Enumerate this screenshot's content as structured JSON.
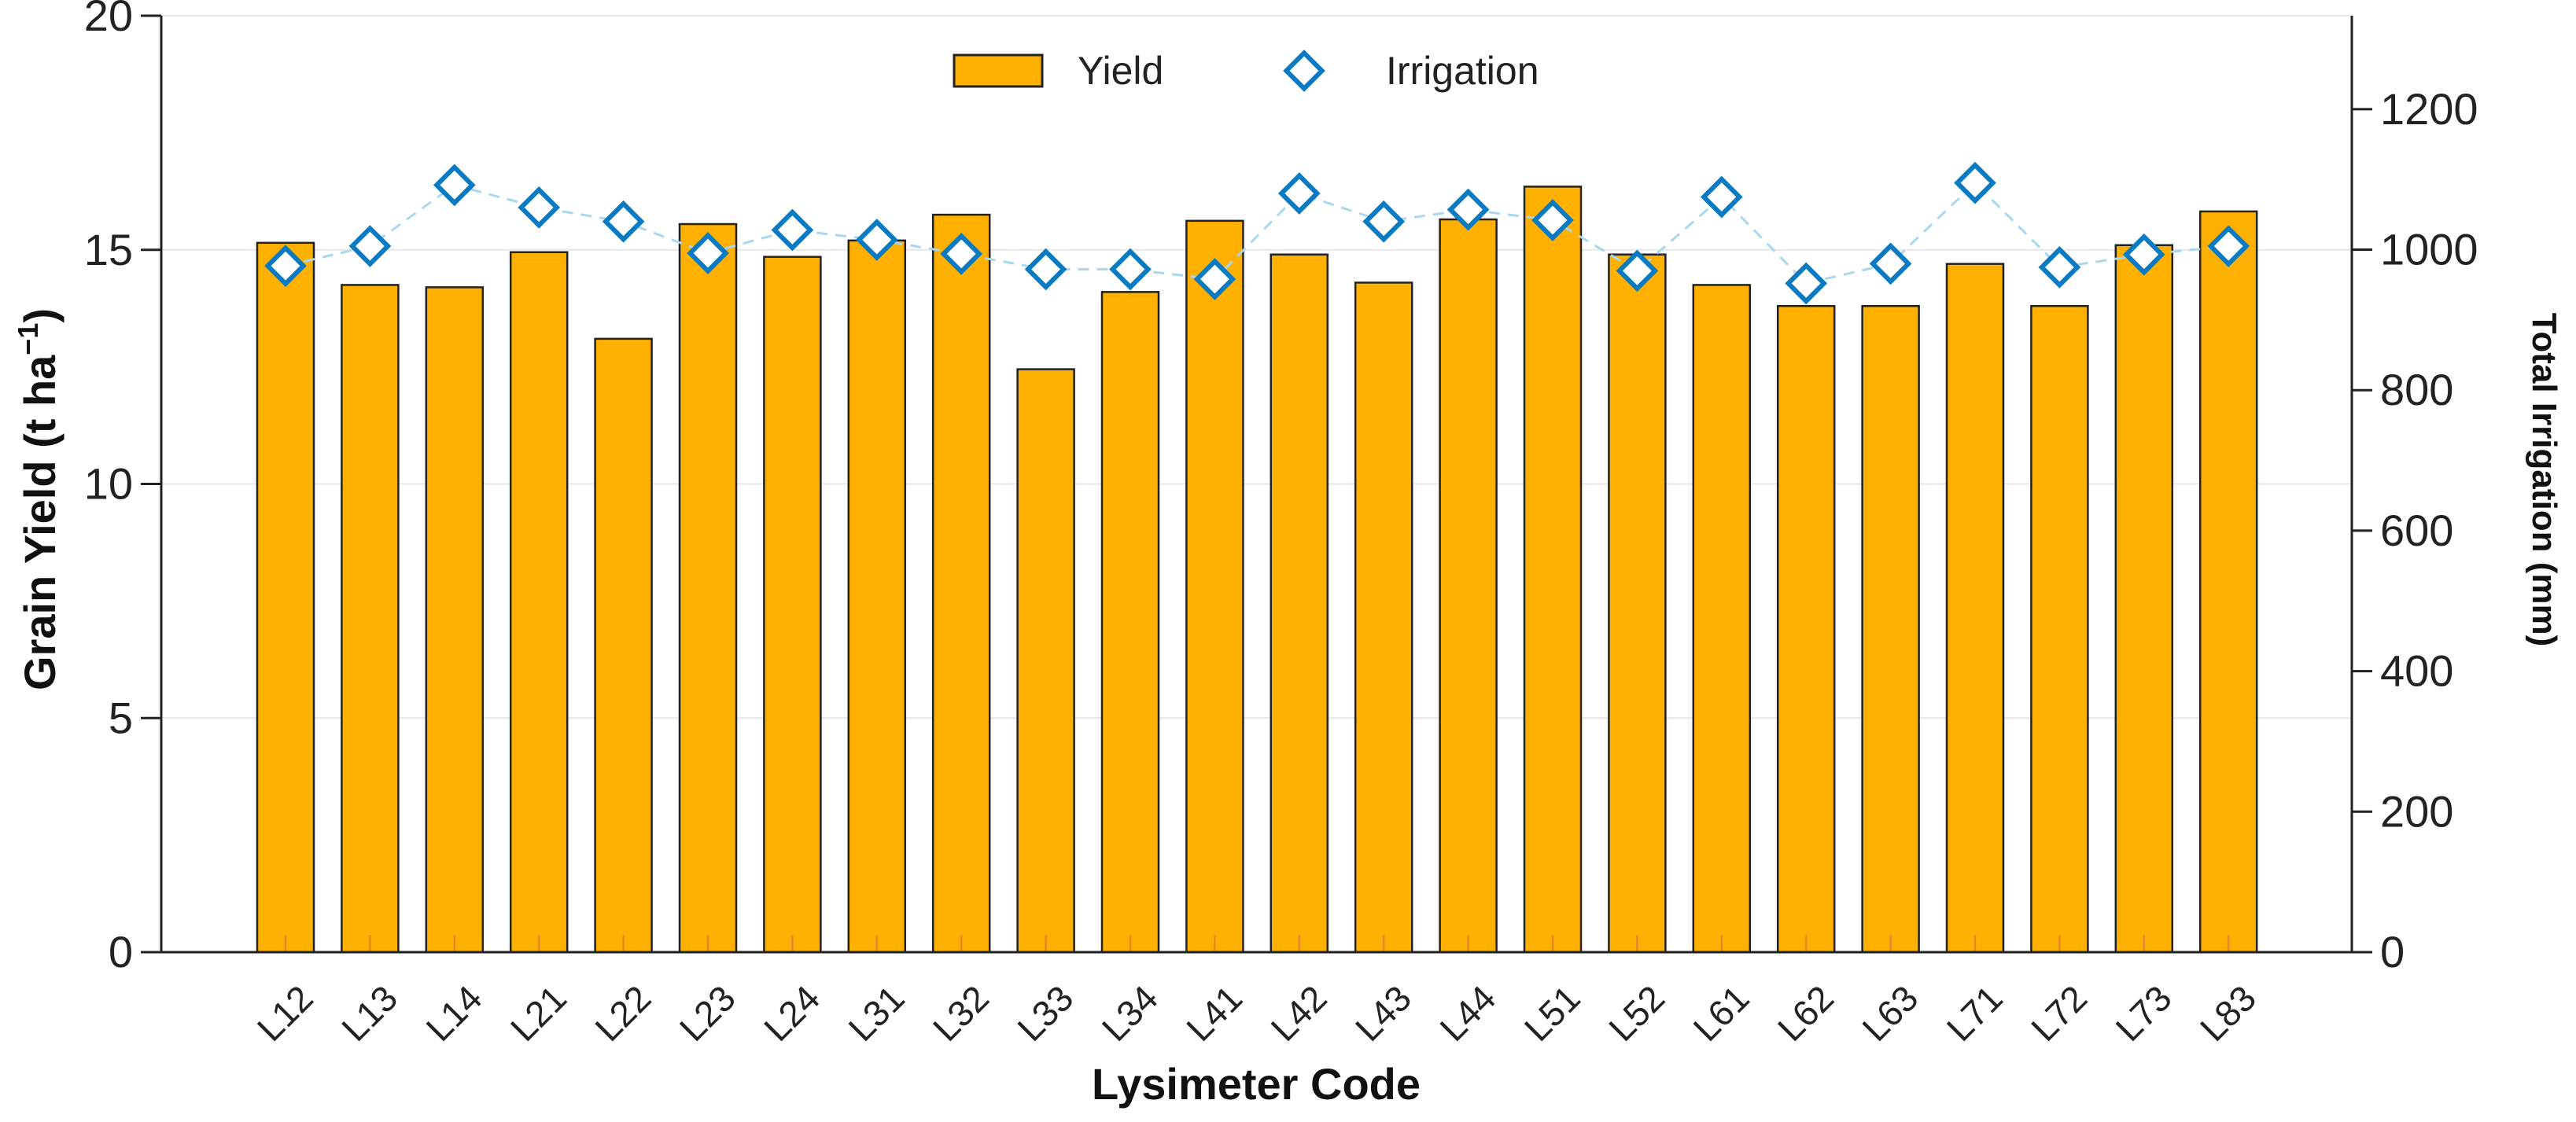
{
  "chart_data": {
    "type": "bar",
    "categories": [
      "L12",
      "L13",
      "L14",
      "L21",
      "L22",
      "L23",
      "L24",
      "L31",
      "L32",
      "L33",
      "L34",
      "L41",
      "L42",
      "L43",
      "L44",
      "L51",
      "L52",
      "L61",
      "L62",
      "L63",
      "L71",
      "L72",
      "L73",
      "L83"
    ],
    "series": [
      {
        "name": "Yield",
        "type": "bar",
        "axis": "left",
        "color": "#FFB000",
        "values": [
          15.15,
          14.25,
          14.2,
          14.95,
          13.1,
          15.55,
          14.85,
          15.2,
          15.75,
          12.45,
          14.1,
          15.62,
          14.9,
          14.3,
          15.65,
          16.35,
          14.9,
          14.25,
          13.8,
          13.8,
          14.7,
          13.8,
          15.1,
          15.82
        ]
      },
      {
        "name": "Irrigation",
        "type": "line",
        "axis": "right",
        "marker": "diamond",
        "color": "#0A7BC2",
        "line_color": "#A9D8EE",
        "values": [
          977,
          1005,
          1092,
          1060,
          1040,
          995,
          1028,
          1014,
          994,
          972,
          972,
          958,
          1080,
          1040,
          1057,
          1042,
          970,
          1075,
          952,
          980,
          1095,
          975,
          993,
          1005
        ]
      }
    ],
    "xlabel": "Lysimeter Code",
    "ylabel": "Grain Yield (t ha",
    "ylabel_sup": "−1",
    "ylabel_close": ")",
    "y2label": "Total Irrigation (mm)",
    "ylim": [
      0,
      20
    ],
    "y2lim": [
      0,
      1333
    ],
    "yticks": [
      "0",
      "5",
      "10",
      "15",
      "20"
    ],
    "y2ticks": [
      "0",
      "200",
      "400",
      "600",
      "800",
      "1000",
      "1200"
    ],
    "grid": "horizontal",
    "legend_position": "top-center"
  }
}
